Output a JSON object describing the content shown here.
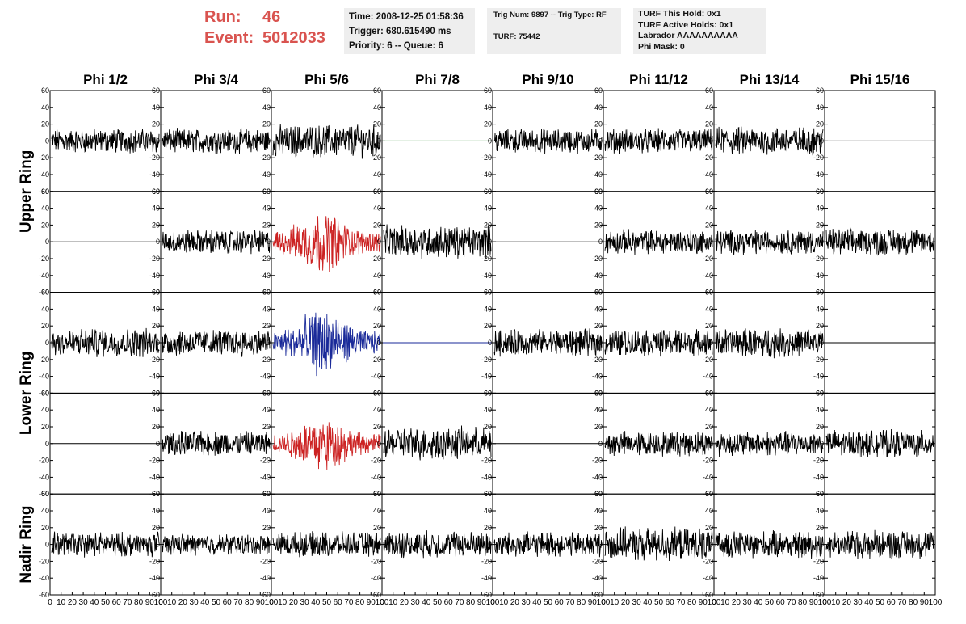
{
  "header": {
    "run_label": "Run:",
    "run_value": "46",
    "event_label": "Event:",
    "event_value": "5012033",
    "time": "Time: 2008-12-25 01:58:36",
    "trigger": "Trigger: 680.615490 ms",
    "priority": "Priority: 6 -- Queue: 6",
    "trig_num": "Trig Num: 9897 -- Trig Type: RF",
    "turf": "TURF: 75442",
    "turf_this_hold": "TURF This Hold: 0x1",
    "turf_active_holds": "TURF Active Holds: 0x1",
    "labrador": "Labrador AAAAAAAAAA",
    "phi_mask": "Phi Mask: 0"
  },
  "colors": {
    "trace_default": "#000000",
    "trace_green": "#2e8b2e",
    "trace_red": "#cc2222",
    "trace_blue": "#1a2a99",
    "header_red": "#d9534f"
  },
  "chart_data": {
    "type": "line",
    "columns": [
      "Phi 1/2",
      "Phi 3/4",
      "Phi 5/6",
      "Phi 7/8",
      "Phi 9/10",
      "Phi 11/12",
      "Phi 13/14",
      "Phi 15/16"
    ],
    "rings": [
      "Upper Ring",
      "Lower Ring",
      "Nadir Ring"
    ],
    "ylim": [
      -60,
      60
    ],
    "xlim": [
      0,
      100
    ],
    "yticks": [
      "60",
      "40",
      "20",
      "0",
      "-20",
      "-40",
      "-60"
    ],
    "xticks": [
      "0",
      "10",
      "20",
      "30",
      "40",
      "50",
      "60",
      "70",
      "80",
      "90",
      "100"
    ],
    "panels": [
      [
        {
          "flat": false,
          "amp": 12,
          "color": "trace_default",
          "pulse": false
        },
        {
          "flat": false,
          "amp": 12,
          "color": "trace_default",
          "pulse": false
        },
        {
          "flat": false,
          "amp": 16,
          "color": "trace_default",
          "pulse": false
        },
        {
          "flat": true,
          "color": "trace_green"
        },
        {
          "flat": false,
          "amp": 12,
          "color": "trace_default",
          "pulse": false
        },
        {
          "flat": false,
          "amp": 12,
          "color": "trace_default",
          "pulse": false
        },
        {
          "flat": false,
          "amp": 14,
          "color": "trace_default",
          "pulse": false
        },
        {
          "flat": true,
          "color": "trace_default"
        }
      ],
      [
        {
          "flat": true,
          "color": "trace_default"
        },
        {
          "flat": false,
          "amp": 12,
          "color": "trace_default",
          "pulse": false
        },
        {
          "flat": false,
          "amp": 22,
          "color": "trace_red",
          "pulse": true
        },
        {
          "flat": false,
          "amp": 16,
          "color": "trace_default",
          "pulse": false
        },
        {
          "flat": true,
          "color": "trace_default"
        },
        {
          "flat": false,
          "amp": 12,
          "color": "trace_default",
          "pulse": false
        },
        {
          "flat": false,
          "amp": 12,
          "color": "trace_default",
          "pulse": false
        },
        {
          "flat": false,
          "amp": 13,
          "color": "trace_default",
          "pulse": false
        }
      ],
      [
        {
          "flat": false,
          "amp": 14,
          "color": "trace_default",
          "pulse": false
        },
        {
          "flat": false,
          "amp": 13,
          "color": "trace_default",
          "pulse": false
        },
        {
          "flat": false,
          "amp": 24,
          "color": "trace_blue",
          "pulse": true
        },
        {
          "flat": true,
          "color": "trace_blue"
        },
        {
          "flat": false,
          "amp": 13,
          "color": "trace_default",
          "pulse": false
        },
        {
          "flat": false,
          "amp": 13,
          "color": "trace_default",
          "pulse": false
        },
        {
          "flat": false,
          "amp": 14,
          "color": "trace_default",
          "pulse": false
        },
        {
          "flat": true,
          "color": "trace_default"
        }
      ],
      [
        {
          "flat": true,
          "color": "trace_default"
        },
        {
          "flat": false,
          "amp": 12,
          "color": "trace_default",
          "pulse": false
        },
        {
          "flat": false,
          "amp": 20,
          "color": "trace_red",
          "pulse": true
        },
        {
          "flat": false,
          "amp": 16,
          "color": "trace_default",
          "pulse": false
        },
        {
          "flat": true,
          "color": "trace_default"
        },
        {
          "flat": false,
          "amp": 12,
          "color": "trace_default",
          "pulse": false
        },
        {
          "flat": false,
          "amp": 12,
          "color": "trace_default",
          "pulse": false
        },
        {
          "flat": false,
          "amp": 13,
          "color": "trace_default",
          "pulse": false
        }
      ],
      [
        {
          "flat": false,
          "amp": 12,
          "color": "trace_default",
          "pulse": false
        },
        {
          "flat": false,
          "amp": 10,
          "color": "trace_default",
          "pulse": false
        },
        {
          "flat": false,
          "amp": 12,
          "color": "trace_default",
          "pulse": false
        },
        {
          "flat": false,
          "amp": 13,
          "color": "trace_default",
          "pulse": false
        },
        {
          "flat": false,
          "amp": 12,
          "color": "trace_default",
          "pulse": false
        },
        {
          "flat": false,
          "amp": 16,
          "color": "trace_default",
          "pulse": false
        },
        {
          "flat": false,
          "amp": 13,
          "color": "trace_default",
          "pulse": false
        },
        {
          "flat": false,
          "amp": 14,
          "color": "trace_default",
          "pulse": false
        }
      ]
    ]
  }
}
